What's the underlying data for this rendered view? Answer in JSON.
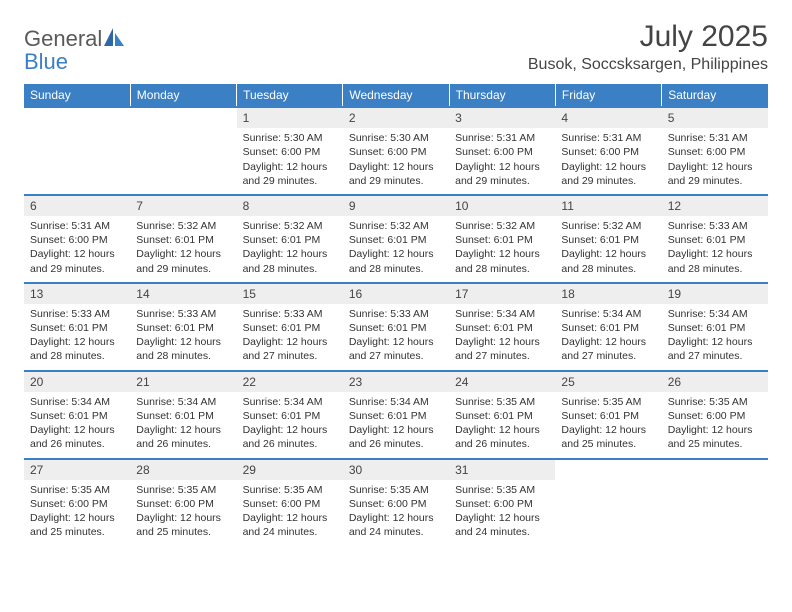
{
  "logo": {
    "text1": "General",
    "text2": "Blue"
  },
  "title": "July 2025",
  "location": "Busok, Soccsksargen, Philippines",
  "colors": {
    "header_bg": "#3b7fc4",
    "header_text": "#ffffff",
    "daynum_bg": "#eeeeee",
    "border_accent": "#3b7fc4",
    "page_bg": "#ffffff",
    "text": "#333333"
  },
  "weekdays": [
    "Sunday",
    "Monday",
    "Tuesday",
    "Wednesday",
    "Thursday",
    "Friday",
    "Saturday"
  ],
  "weeks": [
    {
      "days": [
        null,
        null,
        {
          "n": "1",
          "sr": "Sunrise: 5:30 AM",
          "ss": "Sunset: 6:00 PM",
          "d1": "Daylight: 12 hours",
          "d2": "and 29 minutes."
        },
        {
          "n": "2",
          "sr": "Sunrise: 5:30 AM",
          "ss": "Sunset: 6:00 PM",
          "d1": "Daylight: 12 hours",
          "d2": "and 29 minutes."
        },
        {
          "n": "3",
          "sr": "Sunrise: 5:31 AM",
          "ss": "Sunset: 6:00 PM",
          "d1": "Daylight: 12 hours",
          "d2": "and 29 minutes."
        },
        {
          "n": "4",
          "sr": "Sunrise: 5:31 AM",
          "ss": "Sunset: 6:00 PM",
          "d1": "Daylight: 12 hours",
          "d2": "and 29 minutes."
        },
        {
          "n": "5",
          "sr": "Sunrise: 5:31 AM",
          "ss": "Sunset: 6:00 PM",
          "d1": "Daylight: 12 hours",
          "d2": "and 29 minutes."
        }
      ]
    },
    {
      "days": [
        {
          "n": "6",
          "sr": "Sunrise: 5:31 AM",
          "ss": "Sunset: 6:00 PM",
          "d1": "Daylight: 12 hours",
          "d2": "and 29 minutes."
        },
        {
          "n": "7",
          "sr": "Sunrise: 5:32 AM",
          "ss": "Sunset: 6:01 PM",
          "d1": "Daylight: 12 hours",
          "d2": "and 29 minutes."
        },
        {
          "n": "8",
          "sr": "Sunrise: 5:32 AM",
          "ss": "Sunset: 6:01 PM",
          "d1": "Daylight: 12 hours",
          "d2": "and 28 minutes."
        },
        {
          "n": "9",
          "sr": "Sunrise: 5:32 AM",
          "ss": "Sunset: 6:01 PM",
          "d1": "Daylight: 12 hours",
          "d2": "and 28 minutes."
        },
        {
          "n": "10",
          "sr": "Sunrise: 5:32 AM",
          "ss": "Sunset: 6:01 PM",
          "d1": "Daylight: 12 hours",
          "d2": "and 28 minutes."
        },
        {
          "n": "11",
          "sr": "Sunrise: 5:32 AM",
          "ss": "Sunset: 6:01 PM",
          "d1": "Daylight: 12 hours",
          "d2": "and 28 minutes."
        },
        {
          "n": "12",
          "sr": "Sunrise: 5:33 AM",
          "ss": "Sunset: 6:01 PM",
          "d1": "Daylight: 12 hours",
          "d2": "and 28 minutes."
        }
      ]
    },
    {
      "days": [
        {
          "n": "13",
          "sr": "Sunrise: 5:33 AM",
          "ss": "Sunset: 6:01 PM",
          "d1": "Daylight: 12 hours",
          "d2": "and 28 minutes."
        },
        {
          "n": "14",
          "sr": "Sunrise: 5:33 AM",
          "ss": "Sunset: 6:01 PM",
          "d1": "Daylight: 12 hours",
          "d2": "and 28 minutes."
        },
        {
          "n": "15",
          "sr": "Sunrise: 5:33 AM",
          "ss": "Sunset: 6:01 PM",
          "d1": "Daylight: 12 hours",
          "d2": "and 27 minutes."
        },
        {
          "n": "16",
          "sr": "Sunrise: 5:33 AM",
          "ss": "Sunset: 6:01 PM",
          "d1": "Daylight: 12 hours",
          "d2": "and 27 minutes."
        },
        {
          "n": "17",
          "sr": "Sunrise: 5:34 AM",
          "ss": "Sunset: 6:01 PM",
          "d1": "Daylight: 12 hours",
          "d2": "and 27 minutes."
        },
        {
          "n": "18",
          "sr": "Sunrise: 5:34 AM",
          "ss": "Sunset: 6:01 PM",
          "d1": "Daylight: 12 hours",
          "d2": "and 27 minutes."
        },
        {
          "n": "19",
          "sr": "Sunrise: 5:34 AM",
          "ss": "Sunset: 6:01 PM",
          "d1": "Daylight: 12 hours",
          "d2": "and 27 minutes."
        }
      ]
    },
    {
      "days": [
        {
          "n": "20",
          "sr": "Sunrise: 5:34 AM",
          "ss": "Sunset: 6:01 PM",
          "d1": "Daylight: 12 hours",
          "d2": "and 26 minutes."
        },
        {
          "n": "21",
          "sr": "Sunrise: 5:34 AM",
          "ss": "Sunset: 6:01 PM",
          "d1": "Daylight: 12 hours",
          "d2": "and 26 minutes."
        },
        {
          "n": "22",
          "sr": "Sunrise: 5:34 AM",
          "ss": "Sunset: 6:01 PM",
          "d1": "Daylight: 12 hours",
          "d2": "and 26 minutes."
        },
        {
          "n": "23",
          "sr": "Sunrise: 5:34 AM",
          "ss": "Sunset: 6:01 PM",
          "d1": "Daylight: 12 hours",
          "d2": "and 26 minutes."
        },
        {
          "n": "24",
          "sr": "Sunrise: 5:35 AM",
          "ss": "Sunset: 6:01 PM",
          "d1": "Daylight: 12 hours",
          "d2": "and 26 minutes."
        },
        {
          "n": "25",
          "sr": "Sunrise: 5:35 AM",
          "ss": "Sunset: 6:01 PM",
          "d1": "Daylight: 12 hours",
          "d2": "and 25 minutes."
        },
        {
          "n": "26",
          "sr": "Sunrise: 5:35 AM",
          "ss": "Sunset: 6:00 PM",
          "d1": "Daylight: 12 hours",
          "d2": "and 25 minutes."
        }
      ]
    },
    {
      "days": [
        {
          "n": "27",
          "sr": "Sunrise: 5:35 AM",
          "ss": "Sunset: 6:00 PM",
          "d1": "Daylight: 12 hours",
          "d2": "and 25 minutes."
        },
        {
          "n": "28",
          "sr": "Sunrise: 5:35 AM",
          "ss": "Sunset: 6:00 PM",
          "d1": "Daylight: 12 hours",
          "d2": "and 25 minutes."
        },
        {
          "n": "29",
          "sr": "Sunrise: 5:35 AM",
          "ss": "Sunset: 6:00 PM",
          "d1": "Daylight: 12 hours",
          "d2": "and 24 minutes."
        },
        {
          "n": "30",
          "sr": "Sunrise: 5:35 AM",
          "ss": "Sunset: 6:00 PM",
          "d1": "Daylight: 12 hours",
          "d2": "and 24 minutes."
        },
        {
          "n": "31",
          "sr": "Sunrise: 5:35 AM",
          "ss": "Sunset: 6:00 PM",
          "d1": "Daylight: 12 hours",
          "d2": "and 24 minutes."
        },
        null,
        null
      ]
    }
  ]
}
